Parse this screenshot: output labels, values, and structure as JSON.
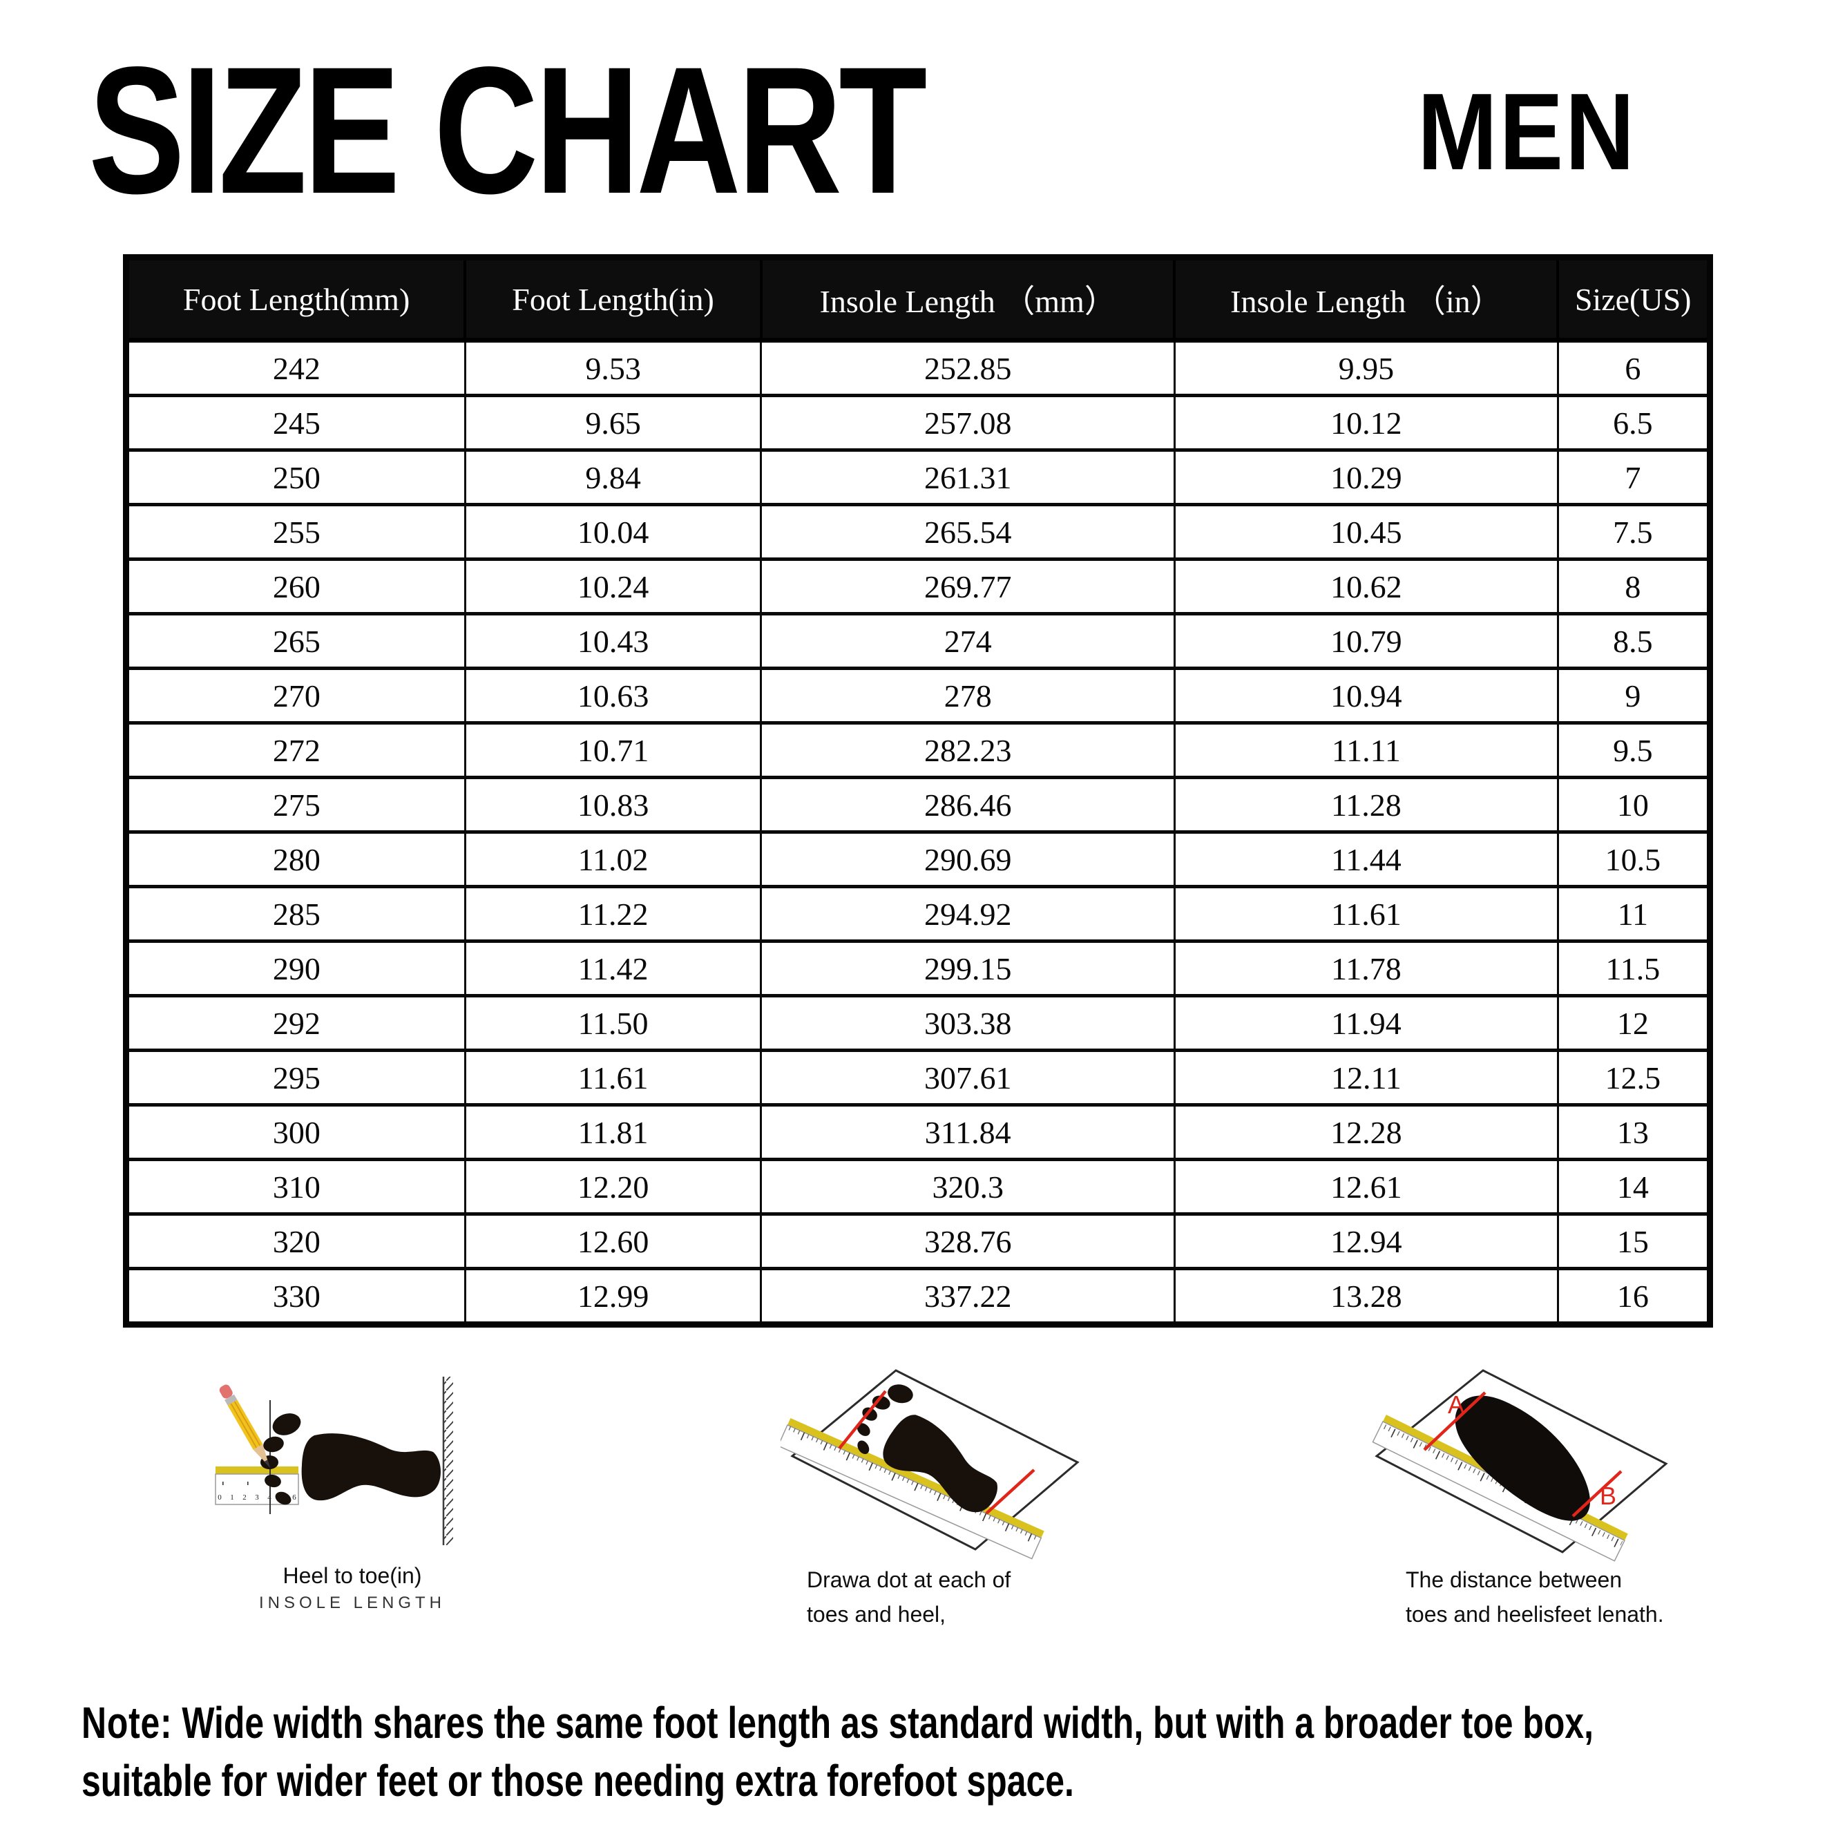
{
  "header": {
    "title": "SIZE CHART",
    "gender_label": "MEN"
  },
  "size_table": {
    "columns": [
      "Foot Length(mm)",
      "Foot Length(in)",
      "Insole Length （mm）",
      "Insole Length （in）",
      "Size(US)"
    ],
    "rows": [
      [
        "242",
        "9.53",
        "252.85",
        "9.95",
        "6"
      ],
      [
        "245",
        "9.65",
        "257.08",
        "10.12",
        "6.5"
      ],
      [
        "250",
        "9.84",
        "261.31",
        "10.29",
        "7"
      ],
      [
        "255",
        "10.04",
        "265.54",
        "10.45",
        "7.5"
      ],
      [
        "260",
        "10.24",
        "269.77",
        "10.62",
        "8"
      ],
      [
        "265",
        "10.43",
        "274",
        "10.79",
        "8.5"
      ],
      [
        "270",
        "10.63",
        "278",
        "10.94",
        "9"
      ],
      [
        "272",
        "10.71",
        "282.23",
        "11.11",
        "9.5"
      ],
      [
        "275",
        "10.83",
        "286.46",
        "11.28",
        "10"
      ],
      [
        "280",
        "11.02",
        "290.69",
        "11.44",
        "10.5"
      ],
      [
        "285",
        "11.22",
        "294.92",
        "11.61",
        "11"
      ],
      [
        "290",
        "11.42",
        "299.15",
        "11.78",
        "11.5"
      ],
      [
        "292",
        "11.50",
        "303.38",
        "11.94",
        "12"
      ],
      [
        "295",
        "11.61",
        "307.61",
        "12.11",
        "12.5"
      ],
      [
        "300",
        "11.81",
        "311.84",
        "12.28",
        "13"
      ],
      [
        "310",
        "12.20",
        "320.3",
        "12.61",
        "14"
      ],
      [
        "320",
        "12.60",
        "328.76",
        "12.94",
        "15"
      ],
      [
        "330",
        "12.99",
        "337.22",
        "13.28",
        "16"
      ]
    ]
  },
  "diagrams": [
    {
      "name": "measure-foot-against-wall",
      "ruler_numbers": [
        "0",
        "1",
        "2",
        "3",
        "4",
        "5",
        "6"
      ],
      "caption_line1": "Heel to toe(in)",
      "caption_line2": "INSOLE LENGTH"
    },
    {
      "name": "trace-foot-on-paper",
      "caption_line1": "Drawa dot at each of",
      "caption_line2": "toes and heel,"
    },
    {
      "name": "measure-distance-a-b",
      "label_a": "A",
      "label_b": "B",
      "caption_line1": "The distance between",
      "caption_line2": "toes and heelisfeet lenath."
    }
  ],
  "note": {
    "prefix": "Note:",
    "line1": "Wide width shares the same foot length as standard width, but with a broader toe box,",
    "line2": "suitable for wider feet or those needing extra forefoot space."
  },
  "colors": {
    "header_bg": "#0d0d0d",
    "header_text": "#ffffff",
    "red_accent": "#e0251b",
    "ruler_yellow": "#d9c21e",
    "foot_black": "#17100b"
  }
}
